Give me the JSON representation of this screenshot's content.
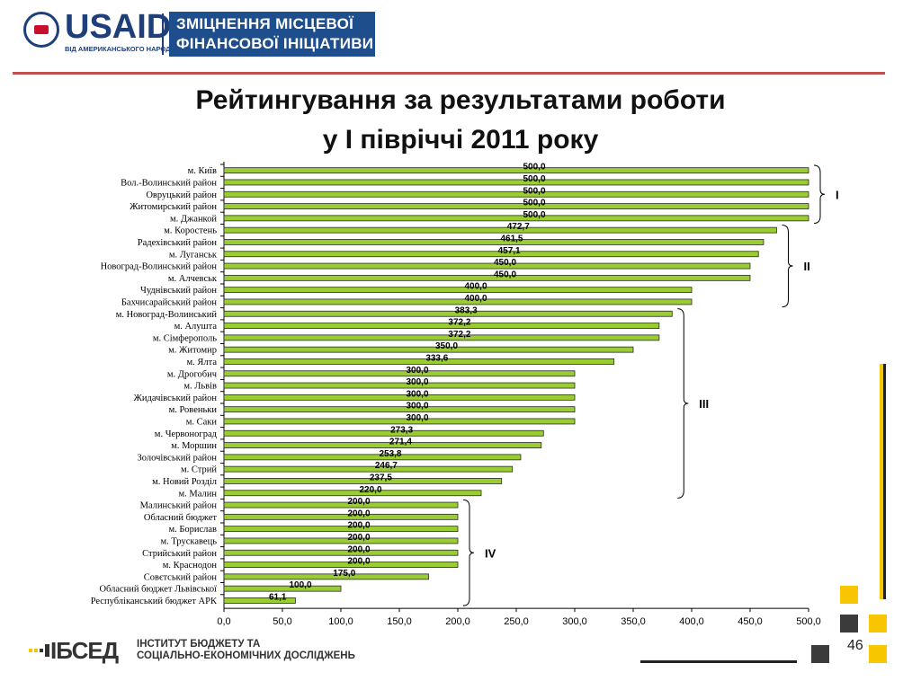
{
  "header": {
    "brand": "USAID",
    "brand_sub": "ВІД АМЕРИКАНСЬКОГО НАРОДУ",
    "project_line1": "ЗМІЦНЕННЯ  МІСЦЕВОЇ",
    "project_line2": "ФІНАНСОВОЇ  ІНІЦІАТИВИ"
  },
  "title_line1": "Рейтингування за результатами роботи",
  "title_line2": "у І півріччі 2011 року",
  "chart_data": {
    "type": "bar",
    "orientation": "horizontal",
    "categories": [
      "м. Київ",
      "Вол.-Волинський район",
      "Овруцький район",
      "Житомирський район",
      "м. Джанкой",
      "м. Коростень",
      "Радехівський район",
      "м. Луганськ",
      "Новоград-Волинський район",
      "м. Алчевськ",
      "Чуднівський район",
      "Бахчисарайський район",
      "м. Новоград-Волинський",
      "м. Алушта",
      "м. Сімферополь",
      "м. Житомир",
      "м. Ялта",
      "м. Дрогобич",
      "м. Львів",
      "Жидачівський район",
      "м. Ровеньки",
      "м. Саки",
      "м. Червоноград",
      "м. Моршин",
      "Золочівський район",
      "м. Стрий",
      "м. Новий Розділ",
      "м. Малин",
      "Малинський район",
      "Обласний бюджет",
      "м. Борислав",
      "м. Трускавець",
      "Стрийський район",
      "м. Краснодон",
      "Совєтський район",
      "Обласний бюджет Львівської",
      "Республіканський бюджет АРК"
    ],
    "values": [
      500.0,
      500.0,
      500.0,
      500.0,
      500.0,
      472.7,
      461.5,
      457.1,
      450.0,
      450.0,
      400.0,
      400.0,
      383.3,
      372.2,
      372.2,
      350.0,
      333.6,
      300.0,
      300.0,
      300.0,
      300.0,
      300.0,
      273.3,
      271.4,
      253.8,
      246.7,
      237.5,
      220.0,
      200.0,
      200.0,
      200.0,
      200.0,
      200.0,
      200.0,
      175.0,
      100.0,
      61.1
    ],
    "value_labels": [
      "500,0",
      "500,0",
      "500,0",
      "500,0",
      "500,0",
      "472,7",
      "461,5",
      "457,1",
      "450,0",
      "450,0",
      "400,0",
      "400,0",
      "383,3",
      "372,2",
      "372,2",
      "350,0",
      "333,6",
      "300,0",
      "300,0",
      "300,0",
      "300,0",
      "300,0",
      "273,3",
      "271,4",
      "253,8",
      "246,7",
      "237,5",
      "220,0",
      "200,0",
      "200,0",
      "200,0",
      "200,0",
      "200,0",
      "200,0",
      "175,0",
      "100,0",
      "61,1"
    ],
    "xlim": [
      0,
      500
    ],
    "xticks": [
      0,
      50,
      100,
      150,
      200,
      250,
      300,
      350,
      400,
      450,
      500
    ],
    "xtick_labels": [
      "0,0",
      "50,0",
      "100,0",
      "150,0",
      "200,0",
      "250,0",
      "300,0",
      "350,0",
      "400,0",
      "450,0",
      "500,0"
    ],
    "bar_color": "#9acd32",
    "groups": [
      {
        "label": "І",
        "from": 0,
        "to": 4
      },
      {
        "label": "ІІ",
        "from": 5,
        "to": 11
      },
      {
        "label": "ІІІ",
        "from": 12,
        "to": 27
      },
      {
        "label": "IV",
        "from": 28,
        "to": 36
      }
    ]
  },
  "footer": {
    "logo": "ІБСЕД",
    "institute_line1": "ІНСТИТУТ БЮДЖЕТУ ТА",
    "institute_line2": "СОЦІАЛЬНО-ЕКОНОМІЧНИХ ДОСЛІДЖЕНЬ",
    "page_number": "46"
  },
  "colors": {
    "brand_blue": "#1f4e8c",
    "accent_red": "#c0504d",
    "accent_yellow": "#f7c600"
  }
}
